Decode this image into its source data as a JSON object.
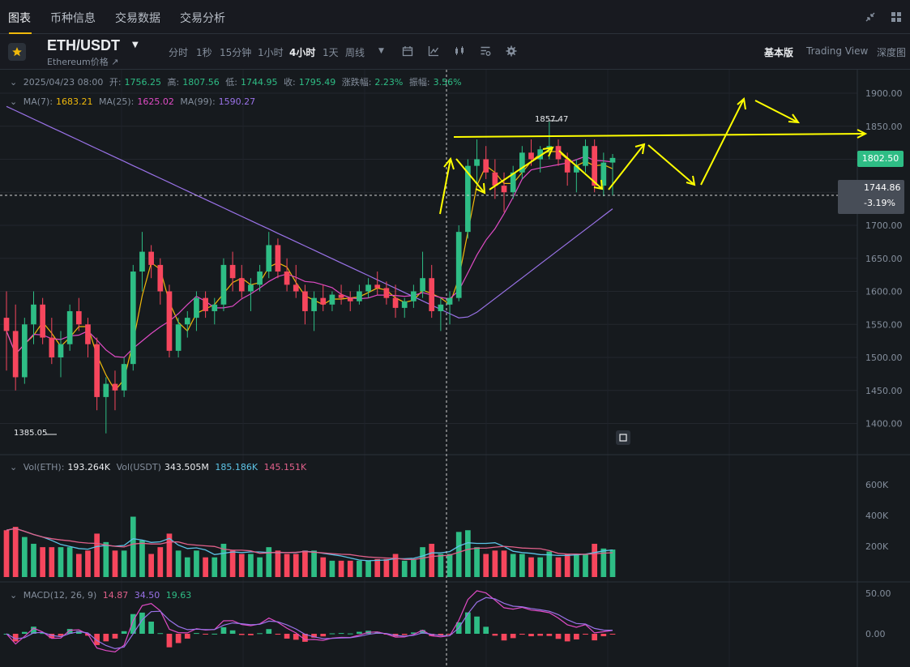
{
  "topnav": {
    "tabs": [
      "图表",
      "币种信息",
      "交易数据",
      "交易分析"
    ]
  },
  "header": {
    "pair": "ETH/USDT",
    "subtitle": "Ethereum价格",
    "intervals": [
      "分时",
      "1秒",
      "15分钟",
      "1小时",
      "4小时",
      "1天",
      "周线"
    ],
    "active_interval": "4小时",
    "view_tabs": [
      "基本版",
      "Trading View",
      "深度图"
    ]
  },
  "ohlc": {
    "date": "2025/04/23 08:00",
    "open_label": "开:",
    "open": "1756.25",
    "high_label": "高:",
    "high": "1807.56",
    "low_label": "低:",
    "low": "1744.95",
    "close_label": "收:",
    "close": "1795.49",
    "change_label": "涨跌幅:",
    "change": "2.23%",
    "amp_label": "振幅:",
    "amp": "3.56%"
  },
  "ma": {
    "ma7_label": "MA(7):",
    "ma7": "1683.21",
    "ma25_label": "MA(25):",
    "ma25": "1625.02",
    "ma99_label": "MA(99):",
    "ma99": "1590.27"
  },
  "volume": {
    "label1": "Vol(ETH):",
    "vol_eth": "193.264K",
    "label2": "Vol(USDT)",
    "vol_usdt": "343.505M",
    "v1": "185.186K",
    "v2": "145.151K",
    "axis": [
      "600K",
      "400K",
      "200K"
    ]
  },
  "macd": {
    "label": "MACD(12, 26, 9)",
    "dif": "14.87",
    "dea": "34.50",
    "hist": "19.63",
    "axis": [
      "50.00",
      "0.00"
    ]
  },
  "price_axis": [
    "1900.00",
    "1850.00",
    "1800.00",
    "1750.00",
    "1700.00",
    "1650.00",
    "1600.00",
    "1550.00",
    "1500.00",
    "1450.00",
    "1400.00"
  ],
  "last_price": "1802.50",
  "crosshair_price": "1744.86",
  "crosshair_pct": "-3.19%",
  "high_marker": "1857.47",
  "low_marker": "1385.05",
  "colors": {
    "up": "#2ebd85",
    "down": "#f6465d",
    "ma7": "#f0b90b",
    "ma25": "#e04bc5",
    "ma99": "#9a72e8",
    "annotation": "#ffff00"
  },
  "chart_data": {
    "type": "candlestick",
    "ylim": [
      1350,
      1920
    ],
    "candles": [
      [
        1560,
        1600,
        1480,
        1540
      ],
      [
        1540,
        1580,
        1450,
        1470
      ],
      [
        1470,
        1560,
        1460,
        1550
      ],
      [
        1550,
        1600,
        1520,
        1580
      ],
      [
        1580,
        1590,
        1520,
        1530
      ],
      [
        1530,
        1560,
        1490,
        1500
      ],
      [
        1500,
        1540,
        1470,
        1520
      ],
      [
        1520,
        1580,
        1510,
        1570
      ],
      [
        1570,
        1590,
        1540,
        1550
      ],
      [
        1550,
        1560,
        1500,
        1520
      ],
      [
        1520,
        1530,
        1420,
        1440
      ],
      [
        1440,
        1470,
        1385,
        1460
      ],
      [
        1460,
        1480,
        1420,
        1450
      ],
      [
        1450,
        1500,
        1440,
        1490
      ],
      [
        1490,
        1640,
        1480,
        1630
      ],
      [
        1630,
        1690,
        1600,
        1660
      ],
      [
        1660,
        1670,
        1620,
        1640
      ],
      [
        1640,
        1650,
        1580,
        1600
      ],
      [
        1600,
        1610,
        1500,
        1510
      ],
      [
        1510,
        1560,
        1500,
        1550
      ],
      [
        1550,
        1570,
        1530,
        1560
      ],
      [
        1560,
        1600,
        1540,
        1590
      ],
      [
        1590,
        1600,
        1560,
        1570
      ],
      [
        1570,
        1590,
        1550,
        1580
      ],
      [
        1580,
        1650,
        1570,
        1640
      ],
      [
        1640,
        1660,
        1600,
        1620
      ],
      [
        1620,
        1640,
        1590,
        1600
      ],
      [
        1600,
        1620,
        1570,
        1610
      ],
      [
        1610,
        1640,
        1600,
        1630
      ],
      [
        1630,
        1690,
        1620,
        1670
      ],
      [
        1670,
        1680,
        1620,
        1630
      ],
      [
        1630,
        1650,
        1600,
        1610
      ],
      [
        1610,
        1640,
        1590,
        1600
      ],
      [
        1600,
        1610,
        1550,
        1570
      ],
      [
        1570,
        1600,
        1540,
        1590
      ],
      [
        1590,
        1610,
        1570,
        1580
      ],
      [
        1580,
        1600,
        1570,
        1595
      ],
      [
        1595,
        1610,
        1580,
        1590
      ],
      [
        1590,
        1600,
        1570,
        1585
      ],
      [
        1585,
        1610,
        1580,
        1600
      ],
      [
        1600,
        1620,
        1590,
        1610
      ],
      [
        1610,
        1630,
        1595,
        1605
      ],
      [
        1605,
        1615,
        1580,
        1590
      ],
      [
        1590,
        1610,
        1560,
        1575
      ],
      [
        1575,
        1590,
        1560,
        1585
      ],
      [
        1585,
        1610,
        1575,
        1600
      ],
      [
        1600,
        1660,
        1590,
        1620
      ],
      [
        1620,
        1640,
        1560,
        1570
      ],
      [
        1570,
        1590,
        1540,
        1580
      ],
      [
        1580,
        1600,
        1550,
        1590
      ],
      [
        1590,
        1700,
        1585,
        1690
      ],
      [
        1690,
        1800,
        1680,
        1790
      ],
      [
        1790,
        1830,
        1760,
        1800
      ],
      [
        1800,
        1820,
        1770,
        1780
      ],
      [
        1780,
        1800,
        1740,
        1760
      ],
      [
        1760,
        1780,
        1720,
        1750
      ],
      [
        1750,
        1790,
        1740,
        1780
      ],
      [
        1780,
        1820,
        1770,
        1810
      ],
      [
        1810,
        1830,
        1790,
        1800
      ],
      [
        1800,
        1820,
        1780,
        1815
      ],
      [
        1815,
        1857,
        1800,
        1820
      ],
      [
        1820,
        1830,
        1790,
        1800
      ],
      [
        1800,
        1810,
        1760,
        1780
      ],
      [
        1780,
        1800,
        1750,
        1790
      ],
      [
        1790,
        1830,
        1780,
        1820
      ],
      [
        1820,
        1830,
        1750,
        1760
      ],
      [
        1760,
        1810,
        1744,
        1795
      ],
      [
        1795,
        1808,
        1745,
        1802
      ]
    ]
  }
}
